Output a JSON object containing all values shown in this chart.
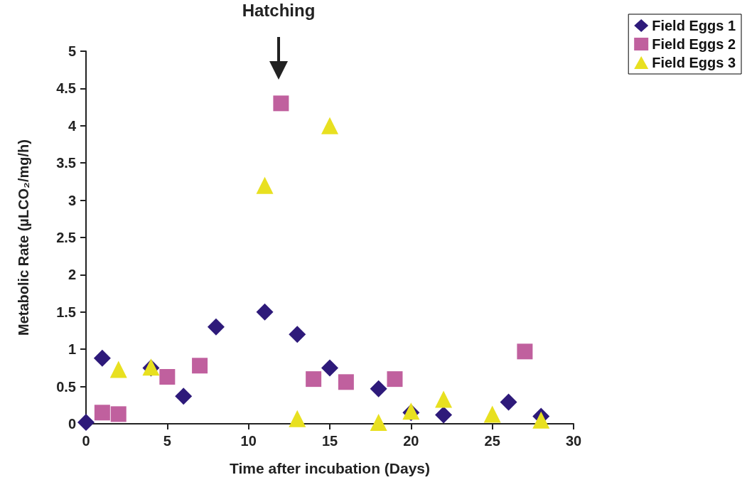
{
  "chart_data": {
    "type": "scatter",
    "xlabel": "Time after incubation (Days)",
    "ylabel": "Metabolic Rate (µLCO₂/mg/h)",
    "annotations": [
      "Hatching"
    ],
    "xlim": [
      0,
      30
    ],
    "xticks": [
      0,
      5,
      10,
      15,
      20,
      25,
      30
    ],
    "ylim": [
      0,
      5
    ],
    "yticks": [
      0,
      0.5,
      1,
      1.5,
      2,
      2.5,
      3,
      3.5,
      4,
      4.5,
      5
    ],
    "grid": false,
    "legend": "top right",
    "series": [
      {
        "name": "Field Eggs 1",
        "color": "#2e1a7a",
        "marker": "diamond",
        "x": [
          0,
          1,
          4,
          6,
          8,
          11,
          13,
          15,
          18,
          20,
          22,
          26,
          28
        ],
        "values": [
          0.02,
          0.88,
          0.75,
          0.37,
          1.3,
          1.5,
          1.2,
          0.75,
          0.47,
          0.15,
          0.12,
          0.29,
          0.1
        ]
      },
      {
        "name": "Field Eggs 2",
        "color": "#c0609e",
        "marker": "square",
        "x": [
          1,
          2,
          5,
          7,
          12,
          14,
          16,
          19,
          27
        ],
        "values": [
          0.15,
          0.13,
          0.63,
          0.78,
          4.3,
          0.6,
          0.56,
          0.6,
          0.97
        ]
      },
      {
        "name": "Field Eggs 3",
        "color": "#e8e020",
        "marker": "triangle",
        "x": [
          2,
          4,
          11,
          13,
          15,
          18,
          20,
          22,
          25,
          28
        ],
        "values": [
          0.73,
          0.76,
          3.2,
          0.07,
          4.0,
          0.02,
          0.17,
          0.33,
          0.13,
          0.05
        ]
      }
    ]
  }
}
